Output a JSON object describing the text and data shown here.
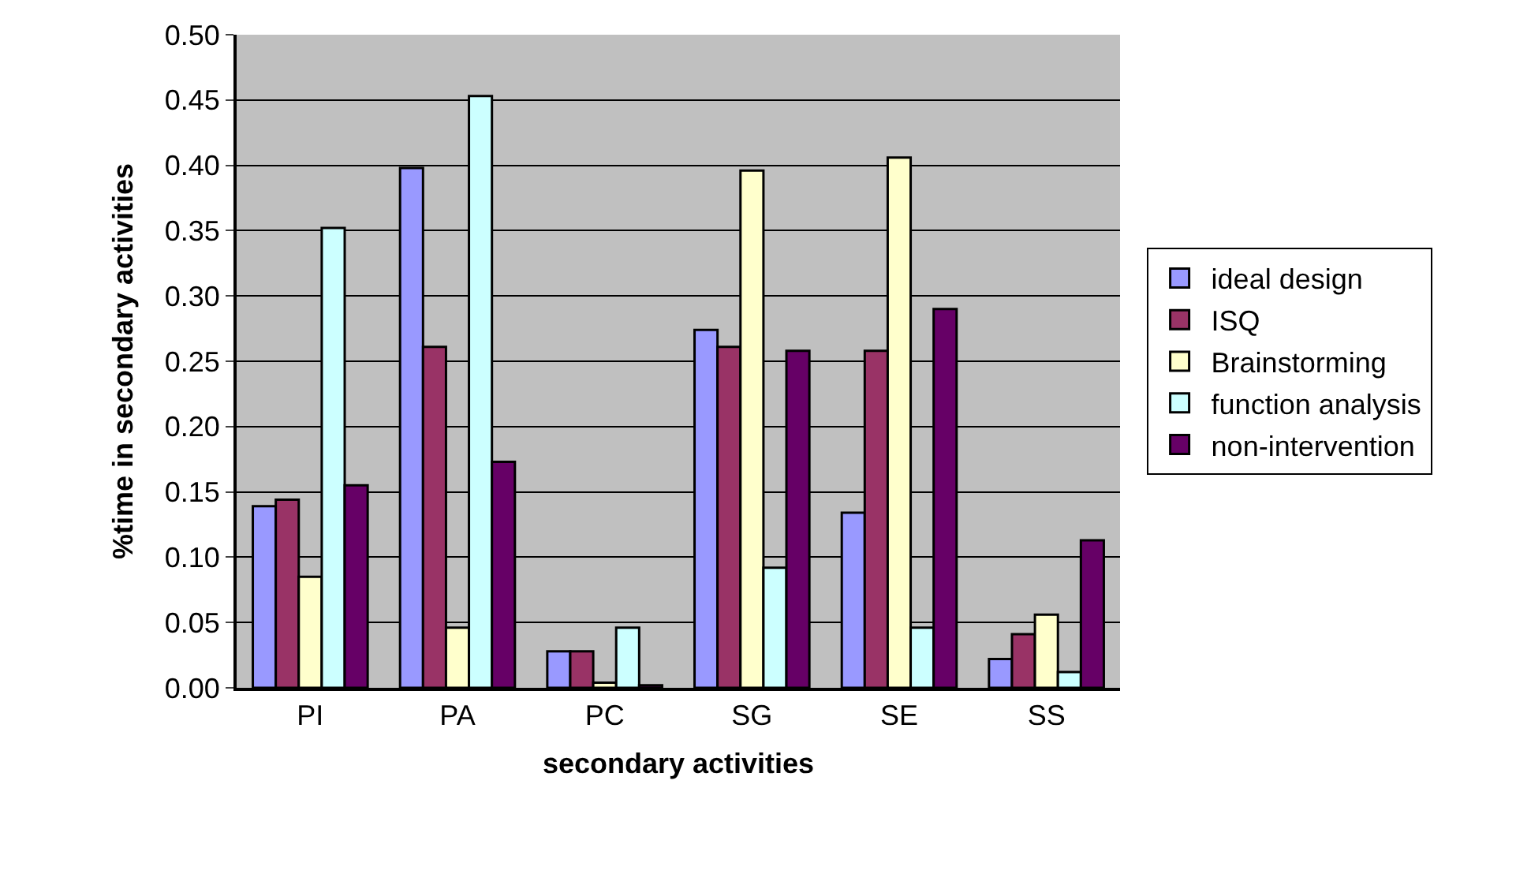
{
  "chart_data": {
    "type": "bar",
    "xlabel": "secondary activities",
    "ylabel": "%time in secondary activities",
    "categories": [
      "PI",
      "PA",
      "PC",
      "SG",
      "SE",
      "SS"
    ],
    "series": [
      {
        "name": "ideal design",
        "color": "#9999ff",
        "values": [
          0.139,
          0.398,
          0.028,
          0.274,
          0.134,
          0.022
        ]
      },
      {
        "name": "ISQ",
        "color": "#993366",
        "values": [
          0.144,
          0.261,
          0.028,
          0.261,
          0.258,
          0.041
        ]
      },
      {
        "name": "Brainstorming",
        "color": "#ffffcc",
        "values": [
          0.085,
          0.046,
          0.004,
          0.396,
          0.406,
          0.056
        ]
      },
      {
        "name": "function analysis",
        "color": "#ccffff",
        "values": [
          0.352,
          0.453,
          0.046,
          0.092,
          0.046,
          0.012
        ]
      },
      {
        "name": "non-intervention",
        "color": "#660066",
        "values": [
          0.155,
          0.173,
          0.002,
          0.258,
          0.29,
          0.113
        ]
      }
    ],
    "ylim": [
      0,
      0.5
    ],
    "yticks": [
      {
        "value": 0,
        "label": "0.00"
      },
      {
        "value": 0.05,
        "label": "0.05"
      },
      {
        "value": 0.1,
        "label": "0.10"
      },
      {
        "value": 0.15,
        "label": "0.15"
      },
      {
        "value": 0.2,
        "label": "0.20"
      },
      {
        "value": 0.25,
        "label": "0.25"
      },
      {
        "value": 0.3,
        "label": "0.30"
      },
      {
        "value": 0.35,
        "label": "0.35"
      },
      {
        "value": 0.4,
        "label": "0.40"
      },
      {
        "value": 0.45,
        "label": "0.45"
      },
      {
        "value": 0.5,
        "label": "0.50"
      }
    ],
    "grid": "y",
    "legend": "right"
  }
}
